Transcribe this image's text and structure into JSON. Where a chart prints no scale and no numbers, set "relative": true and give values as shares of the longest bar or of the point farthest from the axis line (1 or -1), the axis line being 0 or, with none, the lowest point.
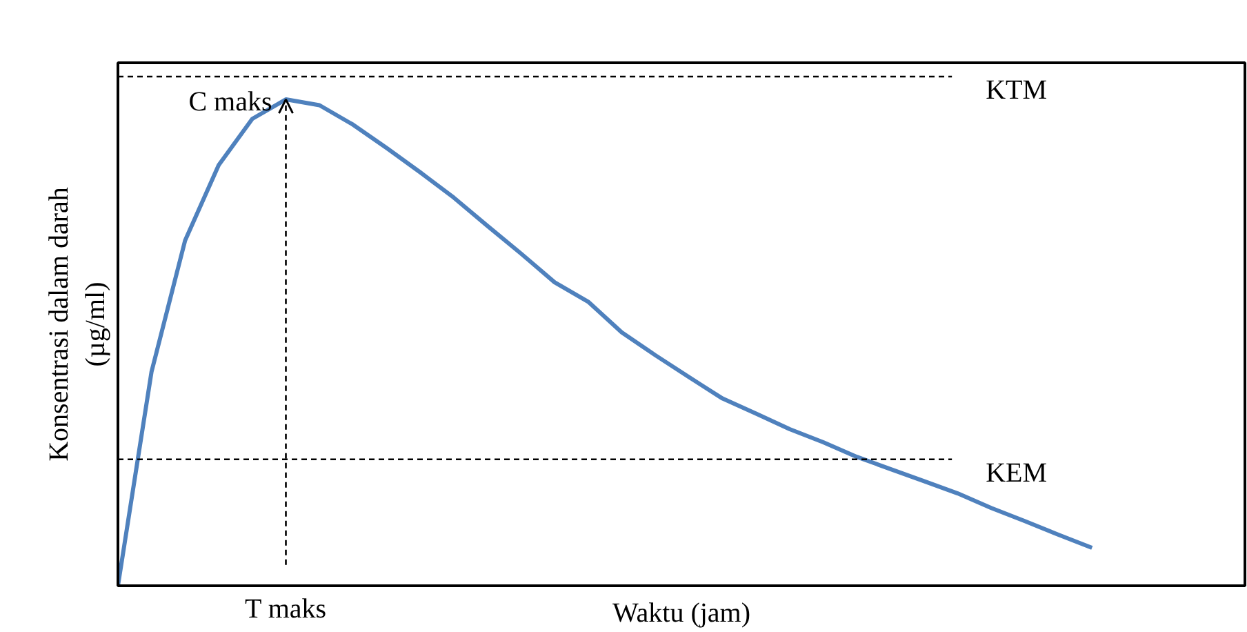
{
  "chart_data": {
    "type": "line",
    "relative": true,
    "xlabel": "Waktu (jam)",
    "ylabel": "Konsentrasi dalam darah\n(µg/ml)",
    "grid": false,
    "categories": [
      null,
      null,
      null,
      null,
      null,
      null,
      null,
      null,
      null,
      null,
      null,
      null,
      null,
      null,
      null,
      null,
      null,
      null,
      null,
      null,
      null,
      null,
      null,
      null,
      null,
      null,
      null,
      null,
      null,
      null
    ],
    "series": [
      {
        "color": "#4f81bd",
        "values": [
          0,
          0.44,
          0.71,
          0.865,
          0.96,
          1.0,
          0.988,
          0.948,
          0.9,
          0.85,
          0.798,
          0.74,
          0.683,
          0.624,
          0.584,
          0.521,
          0.474,
          0.429,
          0.385,
          0.354,
          0.322,
          0.295,
          0.265,
          0.24,
          0.215,
          0.19,
          0.16,
          0.133,
          0.105,
          0.078
        ]
      }
    ],
    "ref_lines": [
      {
        "axis": "y",
        "value": 1.047,
        "label": "KTM",
        "color": "#000000",
        "line_style": "dashed"
      },
      {
        "axis": "y",
        "value": 0.26,
        "label": "KEM",
        "color": "#000000",
        "line_style": "dashed"
      }
    ],
    "annotations": [
      "C maks",
      "T maks"
    ]
  }
}
